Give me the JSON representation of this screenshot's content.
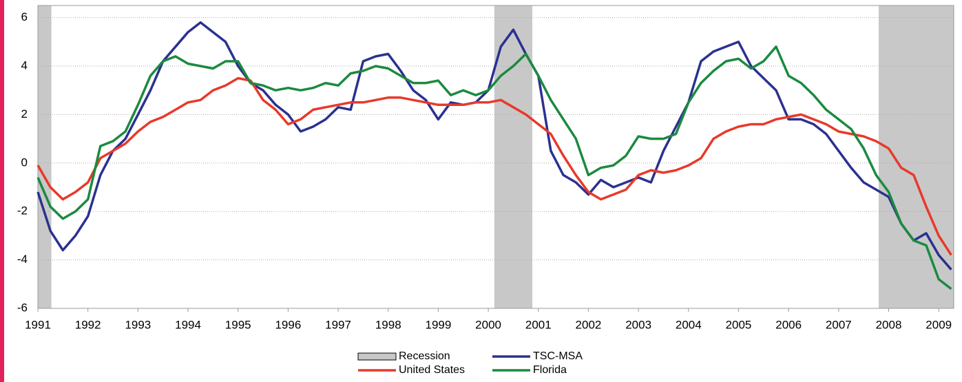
{
  "chart_data": {
    "type": "line",
    "x": [
      1991,
      1991.25,
      1991.5,
      1991.75,
      1992,
      1992.25,
      1992.5,
      1992.75,
      1993,
      1993.25,
      1993.5,
      1993.75,
      1994,
      1994.25,
      1994.5,
      1994.75,
      1995,
      1995.25,
      1995.5,
      1995.75,
      1996,
      1996.25,
      1996.5,
      1996.75,
      1997,
      1997.25,
      1997.5,
      1997.75,
      1998,
      1998.25,
      1998.5,
      1998.75,
      1999,
      1999.25,
      1999.5,
      1999.75,
      2000,
      2000.25,
      2000.5,
      2000.75,
      2001,
      2001.25,
      2001.5,
      2001.75,
      2002,
      2002.25,
      2002.5,
      2002.75,
      2003,
      2003.25,
      2003.5,
      2003.75,
      2004,
      2004.25,
      2004.5,
      2004.75,
      2005,
      2005.25,
      2005.5,
      2005.75,
      2006,
      2006.25,
      2006.5,
      2006.75,
      2007,
      2007.25,
      2007.5,
      2007.75,
      2008,
      2008.25,
      2008.5,
      2008.75,
      2009,
      2009.25
    ],
    "series": [
      {
        "name": "TSC-MSA",
        "color": "#2b3190",
        "values": [
          -1.2,
          -2.8,
          -3.6,
          -3.0,
          -2.2,
          -0.5,
          0.5,
          1.0,
          2.0,
          3.0,
          4.2,
          4.8,
          5.4,
          5.8,
          5.4,
          5.0,
          4.0,
          3.3,
          3.0,
          2.4,
          2.0,
          1.3,
          1.5,
          1.8,
          2.3,
          2.2,
          4.2,
          4.4,
          4.5,
          3.8,
          3.0,
          2.6,
          1.8,
          2.5,
          2.4,
          2.5,
          3.0,
          4.8,
          5.5,
          4.5,
          3.6,
          0.5,
          -0.5,
          -0.8,
          -1.3,
          -0.7,
          -1.0,
          -0.8,
          -0.6,
          -0.8,
          0.5,
          1.5,
          2.5,
          4.2,
          4.6,
          4.8,
          5.0,
          4.0,
          3.5,
          3.0,
          1.8,
          1.8,
          1.6,
          1.2,
          0.5,
          -0.2,
          -0.8,
          -1.1,
          -1.4,
          -2.5,
          -3.2,
          -2.9,
          -3.8,
          -4.4
        ]
      },
      {
        "name": "United States",
        "color": "#e8392a",
        "values": [
          -0.1,
          -1.0,
          -1.5,
          -1.2,
          -0.8,
          0.2,
          0.5,
          0.8,
          1.3,
          1.7,
          1.9,
          2.2,
          2.5,
          2.6,
          3.0,
          3.2,
          3.5,
          3.4,
          2.6,
          2.2,
          1.6,
          1.8,
          2.2,
          2.3,
          2.4,
          2.5,
          2.5,
          2.6,
          2.7,
          2.7,
          2.6,
          2.5,
          2.4,
          2.4,
          2.4,
          2.5,
          2.5,
          2.6,
          2.3,
          2.0,
          1.6,
          1.2,
          0.3,
          -0.5,
          -1.2,
          -1.5,
          -1.3,
          -1.1,
          -0.5,
          -0.3,
          -0.4,
          -0.3,
          -0.1,
          0.2,
          1.0,
          1.3,
          1.5,
          1.6,
          1.6,
          1.8,
          1.9,
          2.0,
          1.8,
          1.6,
          1.3,
          1.2,
          1.1,
          0.9,
          0.6,
          -0.2,
          -0.5,
          -1.8,
          -3.0,
          -3.8
        ]
      },
      {
        "name": "Florida",
        "color": "#1b8a3f",
        "values": [
          -0.6,
          -1.8,
          -2.3,
          -2.0,
          -1.5,
          0.7,
          0.9,
          1.3,
          2.4,
          3.6,
          4.2,
          4.4,
          4.1,
          4.0,
          3.9,
          4.2,
          4.2,
          3.3,
          3.2,
          3.0,
          3.1,
          3.0,
          3.1,
          3.3,
          3.2,
          3.7,
          3.8,
          4.0,
          3.9,
          3.6,
          3.3,
          3.3,
          3.4,
          2.8,
          3.0,
          2.8,
          3.0,
          3.6,
          4.0,
          4.5,
          3.6,
          2.6,
          1.8,
          1.0,
          -0.5,
          -0.2,
          -0.1,
          0.3,
          1.1,
          1.0,
          1.0,
          1.2,
          2.5,
          3.3,
          3.8,
          4.2,
          4.3,
          3.9,
          4.2,
          4.8,
          3.6,
          3.3,
          2.8,
          2.2,
          1.8,
          1.4,
          0.6,
          -0.5,
          -1.2,
          -2.5,
          -3.2,
          -3.4,
          -4.8,
          -5.2
        ]
      }
    ],
    "recession": {
      "name": "Recession",
      "color": "#c8c8c8",
      "periods": [
        [
          1991,
          1991.27
        ],
        [
          2000.12,
          2000.88
        ],
        [
          2007.8,
          2009.3
        ]
      ]
    },
    "xlim": [
      1991,
      2009.3
    ],
    "xticks": [
      1991,
      1992,
      1993,
      1994,
      1995,
      1996,
      1997,
      1998,
      1999,
      2000,
      2001,
      2002,
      2003,
      2004,
      2005,
      2006,
      2007,
      2008,
      2009
    ],
    "ylim": [
      -6,
      6.5
    ],
    "yticks": [
      -6,
      -4,
      -2,
      0,
      2,
      4,
      6
    ],
    "grid": true
  }
}
